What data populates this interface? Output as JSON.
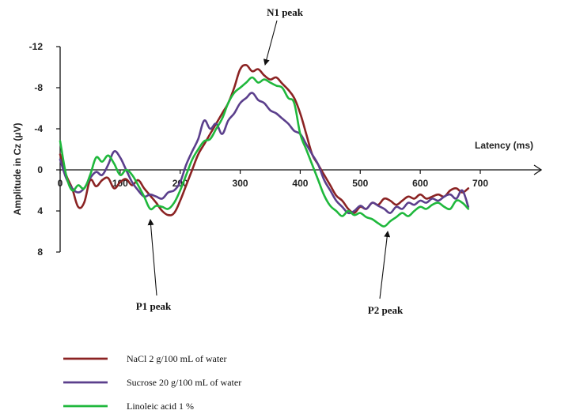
{
  "chart_data": {
    "type": "line",
    "title": "",
    "xlabel": "Latency (ms)",
    "ylabel": "Amplitude in Cz  (µV)",
    "xlim": [
      0,
      700
    ],
    "ylim": [
      -12,
      8
    ],
    "y_inverted": true,
    "grid": false,
    "legend_position": "bottom-left",
    "x_ticks": [
      "0",
      "100",
      "200",
      "300",
      "400",
      "500",
      "600",
      "700"
    ],
    "x_tick_values": [
      0,
      100,
      200,
      300,
      400,
      500,
      600,
      700
    ],
    "y_ticks": [
      "-12",
      "-8",
      "-4",
      "0",
      "4",
      "8"
    ],
    "y_tick_values": [
      -12,
      -8,
      -4,
      0,
      4,
      8
    ],
    "series": [
      {
        "name": "NaCl 2 g/100 mL of water",
        "color": "#8b2323",
        "x": [
          0,
          10,
          20,
          30,
          40,
          50,
          60,
          70,
          80,
          90,
          100,
          110,
          120,
          130,
          140,
          150,
          160,
          170,
          180,
          190,
          200,
          210,
          220,
          230,
          240,
          250,
          260,
          270,
          280,
          290,
          300,
          310,
          320,
          330,
          340,
          350,
          360,
          370,
          380,
          390,
          400,
          410,
          420,
          430,
          440,
          450,
          460,
          470,
          480,
          490,
          500,
          510,
          520,
          530,
          540,
          550,
          560,
          570,
          580,
          590,
          600,
          610,
          620,
          630,
          640,
          650,
          660,
          670,
          680
        ],
        "y": [
          -1.5,
          0.5,
          1.8,
          3.6,
          3.2,
          1.0,
          1.6,
          1.0,
          0.8,
          1.8,
          1.2,
          0.9,
          1.5,
          1.0,
          1.8,
          2.5,
          3.2,
          4.0,
          4.4,
          4.2,
          3.0,
          1.5,
          0.0,
          -1.5,
          -2.5,
          -3.5,
          -4.5,
          -5.5,
          -6.5,
          -8.0,
          -9.8,
          -10.2,
          -9.6,
          -9.8,
          -9.2,
          -8.8,
          -9.0,
          -8.4,
          -7.8,
          -7.0,
          -5.5,
          -3.5,
          -1.5,
          -0.5,
          0.5,
          1.5,
          2.5,
          3.0,
          3.8,
          4.2,
          3.6,
          3.8,
          3.2,
          3.4,
          2.8,
          3.0,
          3.4,
          3.0,
          2.6,
          2.8,
          2.4,
          2.8,
          2.6,
          2.4,
          2.6,
          2.0,
          1.8,
          2.2,
          1.8
        ]
      },
      {
        "name": "Sucrose 20 g/100 mL of water",
        "color": "#5b3f8c",
        "x": [
          0,
          10,
          20,
          30,
          40,
          50,
          60,
          70,
          80,
          90,
          100,
          110,
          120,
          130,
          140,
          150,
          160,
          170,
          180,
          190,
          200,
          210,
          220,
          230,
          240,
          250,
          260,
          270,
          280,
          290,
          300,
          310,
          320,
          330,
          340,
          350,
          360,
          370,
          380,
          390,
          400,
          410,
          420,
          430,
          440,
          450,
          460,
          470,
          480,
          490,
          500,
          510,
          520,
          530,
          540,
          550,
          560,
          570,
          580,
          590,
          600,
          610,
          620,
          630,
          640,
          650,
          660,
          670,
          680
        ],
        "y": [
          -1.0,
          0.8,
          1.8,
          2.2,
          1.8,
          0.8,
          0.2,
          0.5,
          -0.5,
          -1.8,
          -1.2,
          0.0,
          1.2,
          2.0,
          2.6,
          2.4,
          2.6,
          2.8,
          2.2,
          2.0,
          1.2,
          -0.5,
          -1.8,
          -3.0,
          -4.8,
          -4.0,
          -4.5,
          -3.5,
          -4.8,
          -5.5,
          -6.5,
          -7.0,
          -7.5,
          -6.8,
          -6.5,
          -5.8,
          -5.5,
          -5.0,
          -4.5,
          -3.8,
          -3.5,
          -2.5,
          -1.5,
          -0.5,
          1.0,
          2.0,
          3.0,
          3.6,
          4.2,
          4.0,
          3.5,
          3.8,
          3.2,
          3.5,
          3.8,
          4.2,
          3.6,
          3.8,
          3.2,
          3.4,
          3.0,
          3.2,
          2.8,
          3.0,
          2.6,
          2.4,
          2.8,
          2.0,
          3.6
        ]
      },
      {
        "name": "Linoleic acid 1 %",
        "color": "#1fb83c",
        "x": [
          0,
          10,
          20,
          30,
          40,
          50,
          60,
          70,
          80,
          90,
          100,
          110,
          120,
          130,
          140,
          150,
          160,
          170,
          180,
          190,
          200,
          210,
          220,
          230,
          240,
          250,
          260,
          270,
          280,
          290,
          300,
          310,
          320,
          330,
          340,
          350,
          360,
          370,
          380,
          390,
          400,
          410,
          420,
          430,
          440,
          450,
          460,
          470,
          480,
          490,
          500,
          510,
          520,
          530,
          540,
          550,
          560,
          570,
          580,
          590,
          600,
          610,
          620,
          630,
          640,
          650,
          660,
          670,
          680
        ],
        "y": [
          -2.8,
          0.5,
          2.0,
          1.5,
          1.8,
          0.5,
          -1.2,
          -0.8,
          -1.4,
          -0.6,
          0.5,
          0.0,
          0.5,
          1.5,
          2.6,
          3.8,
          3.5,
          3.6,
          3.8,
          3.2,
          2.0,
          0.5,
          -1.0,
          -2.0,
          -2.8,
          -3.0,
          -4.0,
          -5.0,
          -6.5,
          -7.5,
          -8.0,
          -8.5,
          -9.0,
          -8.5,
          -8.8,
          -8.5,
          -8.2,
          -8.0,
          -7.0,
          -6.5,
          -3.5,
          -2.0,
          -0.5,
          1.0,
          2.5,
          3.5,
          4.0,
          4.5,
          4.0,
          4.4,
          4.2,
          4.6,
          4.8,
          5.2,
          5.5,
          5.0,
          4.6,
          4.2,
          4.5,
          4.0,
          3.6,
          3.8,
          3.4,
          3.2,
          3.6,
          3.8,
          3.0,
          3.2,
          3.8
        ]
      }
    ],
    "annotations": [
      {
        "text": "N1 peak",
        "x": 340,
        "y": -9.6
      },
      {
        "text": "P1 peak",
        "x": 195,
        "y": 4.3
      },
      {
        "text": "P2 peak",
        "x": 550,
        "y": 5.1
      }
    ]
  }
}
